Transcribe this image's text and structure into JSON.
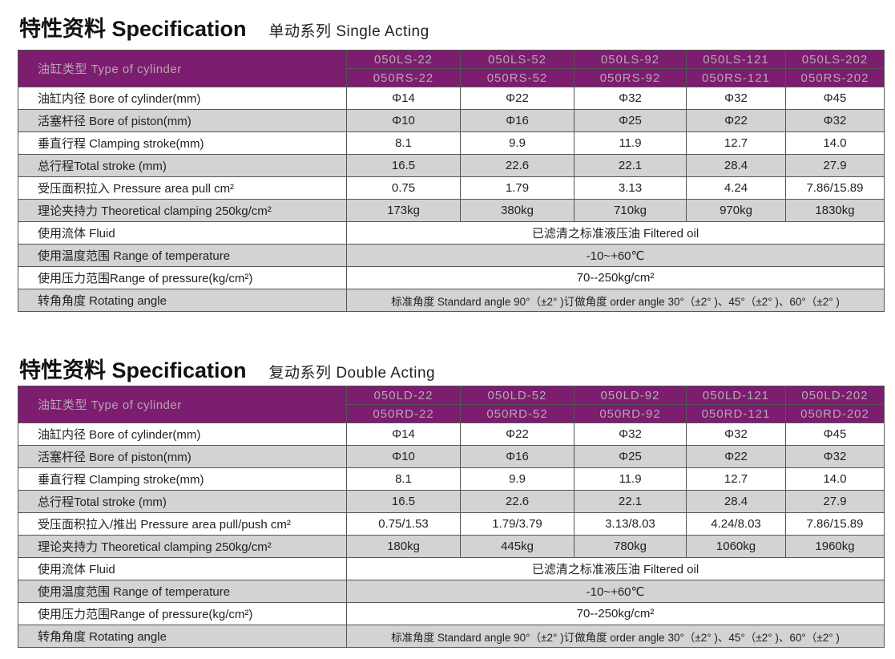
{
  "sections": [
    {
      "title": "特性资料  Specification",
      "subtitle": "单动系列  Single Acting",
      "header_label": "油缸类型 Type of cylinder",
      "models_top": [
        "050LS-22",
        "050LS-52",
        "050LS-92",
        "050LS-121",
        "050LS-202"
      ],
      "models_bottom": [
        "050RS-22",
        "050RS-52",
        "050RS-92",
        "050RS-121",
        "050RS-202"
      ],
      "rows": [
        {
          "label": "油缸内径 Bore of cylinder(mm)",
          "values": [
            "Φ14",
            "Φ22",
            "Φ32",
            "Φ32",
            "Φ45"
          ]
        },
        {
          "label": "活塞杆径  Bore of piston(mm)",
          "values": [
            "Φ10",
            "Φ16",
            "Φ25",
            "Φ22",
            "Φ32"
          ]
        },
        {
          "label": "垂直行程  Clamping stroke(mm)",
          "values": [
            "8.1",
            "9.9",
            "11.9",
            "12.7",
            "14.0"
          ]
        },
        {
          "label": "总行程Total stroke (mm)",
          "values": [
            "16.5",
            "22.6",
            "22.1",
            "28.4",
            "27.9"
          ]
        },
        {
          "label": "受压面积拉入   Pressure area pull  cm²",
          "values": [
            "0.75",
            "1.79",
            "3.13",
            "4.24",
            "7.86/15.89"
          ]
        },
        {
          "label": "理论夹持力  Theoretical clamping   250kg/cm²",
          "values": [
            "173kg",
            "380kg",
            "710kg",
            "970kg",
            "1830kg"
          ]
        },
        {
          "label": "使用流体 Fluid",
          "span": "已滤清之标准液压油 Filtered oil"
        },
        {
          "label": "使用温度范围 Range of temperature",
          "span": "-10~+60℃"
        },
        {
          "label": "使用压力范围Range of pressure(kg/cm²)",
          "span": "70--250kg/cm²"
        },
        {
          "label": "转角角度 Rotating angle",
          "span": "标准角度 Standard angle 90°（±2° )订做角度 order angle 30°（±2° )、45°（±2° )、60°（±2° )"
        }
      ]
    },
    {
      "title": "特性资料  Specification",
      "subtitle": "复动系列  Double Acting",
      "header_label": "油缸类型 Type of cylinder",
      "models_top": [
        "050LD-22",
        "050LD-52",
        "050LD-92",
        "050LD-121",
        "050LD-202"
      ],
      "models_bottom": [
        "050RD-22",
        "050RD-52",
        "050RD-92",
        "050RD-121",
        "050RD-202"
      ],
      "rows": [
        {
          "label": "油缸内径 Bore of cylinder(mm)",
          "values": [
            "Φ14",
            "Φ22",
            "Φ32",
            "Φ32",
            "Φ45"
          ]
        },
        {
          "label": "活塞杆径  Bore of piston(mm)",
          "values": [
            "Φ10",
            "Φ16",
            "Φ25",
            "Φ22",
            "Φ32"
          ]
        },
        {
          "label": "垂直行程  Clamping stroke(mm)",
          "values": [
            "8.1",
            "9.9",
            "11.9",
            "12.7",
            "14.0"
          ]
        },
        {
          "label": "总行程Total stroke (mm)",
          "values": [
            "16.5",
            "22.6",
            "22.1",
            "28.4",
            "27.9"
          ]
        },
        {
          "label": "受压面积拉入/推出 Pressure area pull/push  cm²",
          "values": [
            "0.75/1.53",
            "1.79/3.79",
            "3.13/8.03",
            "4.24/8.03",
            "7.86/15.89"
          ]
        },
        {
          "label": "理论夹持力  Theoretical clamping   250kg/cm²",
          "values": [
            "180kg",
            "445kg",
            "780kg",
            "1060kg",
            "1960kg"
          ]
        },
        {
          "label": "使用流体 Fluid",
          "span": "已滤清之标准液压油 Filtered oil"
        },
        {
          "label": "使用温度范围 Range of temperature",
          "span": "-10~+60℃"
        },
        {
          "label": "使用压力范围Range of pressure(kg/cm²)",
          "span": "70--250kg/cm²"
        },
        {
          "label": "转角角度 Rotating angle",
          "span": "标准角度 Standard angle 90°（±2° )订做角度 order angle 30°（±2° )、45°（±2° )、60°（±2° )"
        }
      ]
    }
  ]
}
